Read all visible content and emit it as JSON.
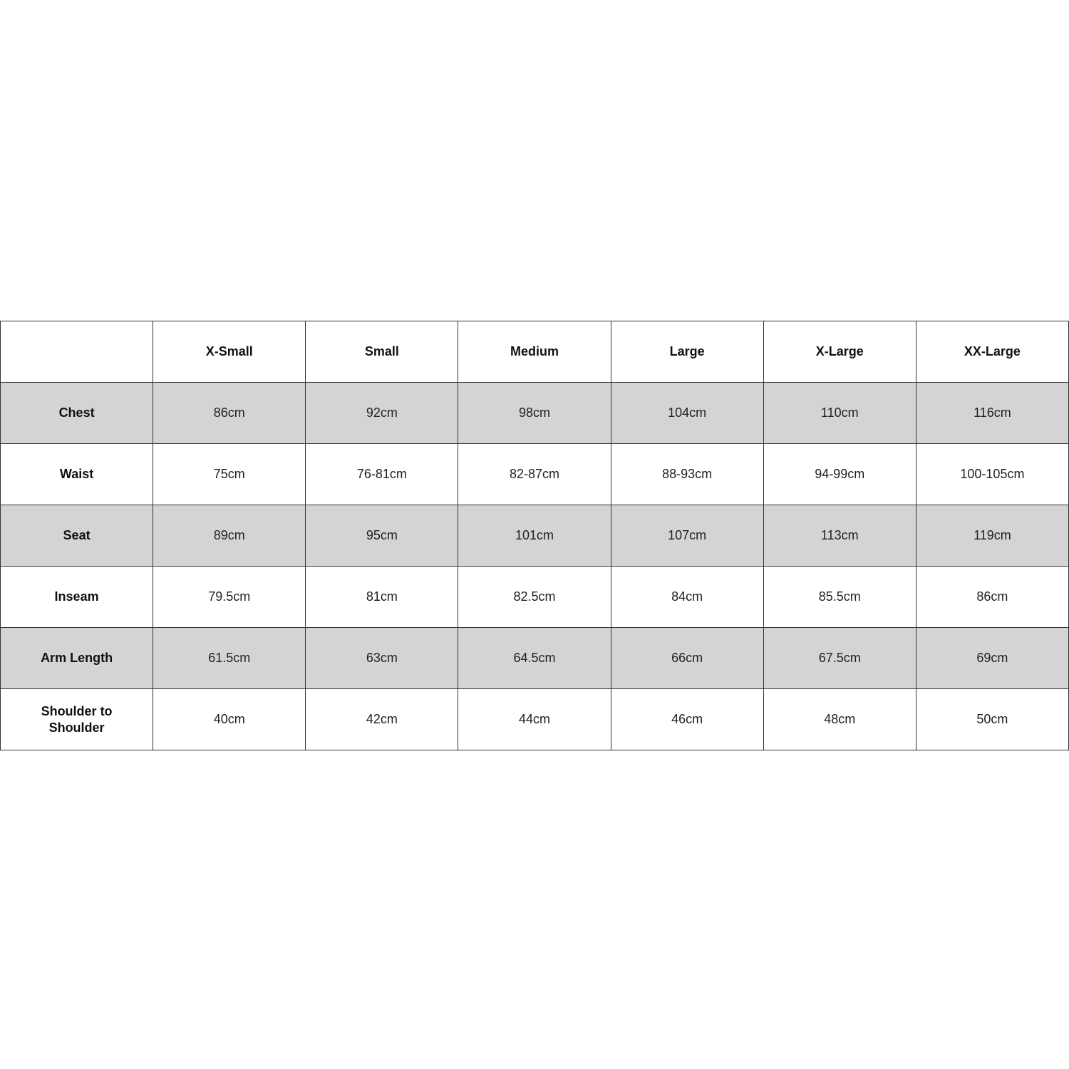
{
  "table": {
    "corner": "",
    "columns": [
      "X-Small",
      "Small",
      "Medium",
      "Large",
      "X-Large",
      "XX-Large"
    ],
    "shaded_row_color": "#d4d4d6",
    "rows": [
      {
        "label": "Chest",
        "shaded": true,
        "values": [
          "86cm",
          "92cm",
          "98cm",
          "104cm",
          "110cm",
          "116cm"
        ]
      },
      {
        "label": "Waist",
        "shaded": false,
        "values": [
          "75cm",
          "76-81cm",
          "82-87cm",
          "88-93cm",
          "94-99cm",
          "100-105cm"
        ]
      },
      {
        "label": "Seat",
        "shaded": true,
        "values": [
          "89cm",
          "95cm",
          "101cm",
          "107cm",
          "113cm",
          "119cm"
        ]
      },
      {
        "label": "Inseam",
        "shaded": false,
        "values": [
          "79.5cm",
          "81cm",
          "82.5cm",
          "84cm",
          "85.5cm",
          "86cm"
        ]
      },
      {
        "label": "Arm Length",
        "shaded": true,
        "values": [
          "61.5cm",
          "63cm",
          "64.5cm",
          "66cm",
          "67.5cm",
          "69cm"
        ]
      },
      {
        "label": "Shoulder to Shoulder",
        "shaded": false,
        "values": [
          "40cm",
          "42cm",
          "44cm",
          "46cm",
          "48cm",
          "50cm"
        ]
      }
    ]
  }
}
